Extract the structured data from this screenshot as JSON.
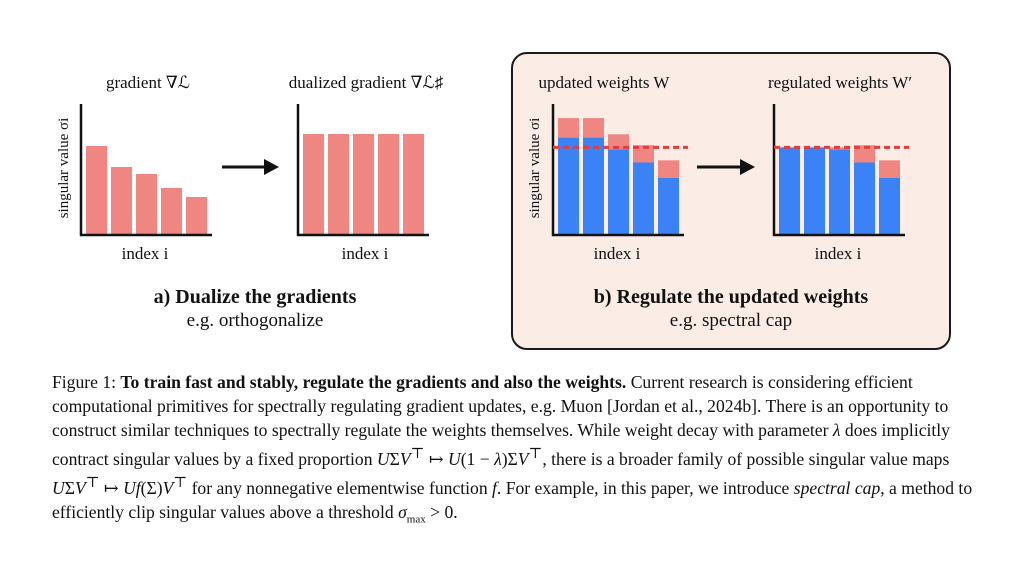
{
  "colors": {
    "bar_red": "#ef8681",
    "bar_blue": "#3b82f6",
    "cap_line": "#e83a3a",
    "panel_bg": "#fbece5",
    "panel_border": "#1a1a1a"
  },
  "panel_a": {
    "left_title": "gradient ∇ℒ",
    "right_title": "dualized gradient ∇ℒ♯",
    "ylabel": "singular value σi",
    "xlabel_left": "index i",
    "xlabel_right": "index i",
    "heading": "a) Dualize the gradients",
    "subheading": "e.g. orthogonalize"
  },
  "panel_b": {
    "left_title": "updated weights W",
    "right_title": "regulated weights W′",
    "ylabel": "singular value σi",
    "xlabel_left": "index i",
    "xlabel_right": "index i",
    "heading": "b) Regulate the updated weights",
    "subheading": "e.g. spectral cap"
  },
  "chart_data": [
    {
      "type": "bar",
      "title": "gradient ∇ℒ",
      "xlabel": "index i",
      "ylabel": "singular value σi",
      "values": [
        0.88,
        0.67,
        0.6,
        0.46,
        0.37
      ],
      "ylim": [
        0,
        1.3
      ]
    },
    {
      "type": "bar",
      "title": "dualized gradient ∇ℒ♯",
      "xlabel": "index i",
      "values": [
        1,
        1,
        1,
        1,
        1
      ],
      "ylim": [
        0,
        1.3
      ]
    },
    {
      "type": "bar",
      "title": "updated weights W",
      "xlabel": "index i",
      "ylabel": "singular value σi",
      "series": [
        {
          "name": "weights",
          "values": [
            0.89,
            0.89,
            0.78,
            0.66,
            0.52
          ]
        },
        {
          "name": "update",
          "values": [
            0.18,
            0.18,
            0.14,
            0.16,
            0.16
          ]
        }
      ],
      "cap": 0.8,
      "ylim": [
        0,
        1.2
      ]
    },
    {
      "type": "bar",
      "title": "regulated weights W′",
      "xlabel": "index i",
      "series": [
        {
          "name": "weights",
          "values": [
            0.8,
            0.8,
            0.78,
            0.66,
            0.52
          ]
        },
        {
          "name": "update",
          "values": [
            0,
            0,
            0.02,
            0.16,
            0.16
          ]
        }
      ],
      "cap": 0.8,
      "ylim": [
        0,
        1.2
      ]
    }
  ]
}
